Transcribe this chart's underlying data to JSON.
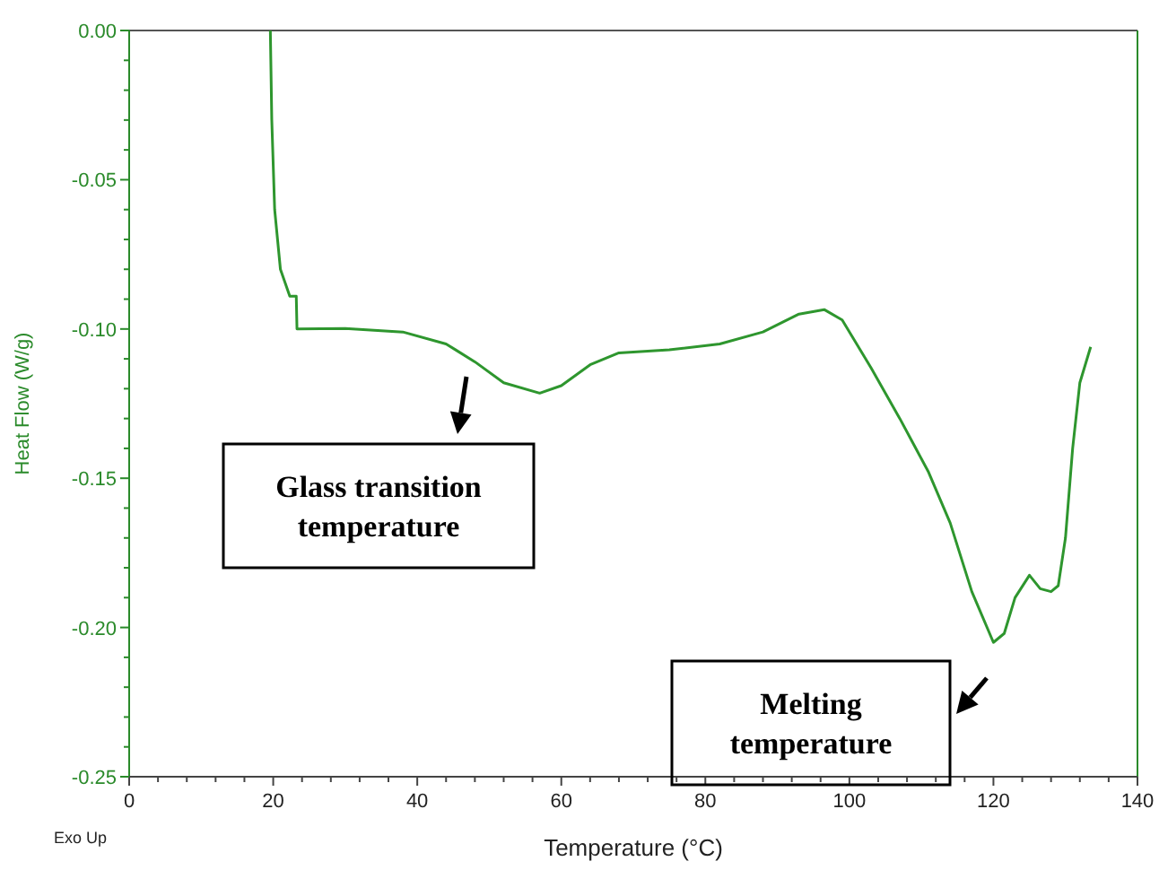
{
  "chart_data": {
    "type": "line",
    "xlabel": "Temperature (°C)",
    "ylabel": "Heat Flow (W/g)",
    "xlim": [
      0,
      140
    ],
    "xticks": [
      0,
      20,
      40,
      60,
      80,
      100,
      120,
      140
    ],
    "ylim": [
      -0.25,
      0
    ],
    "yticks": [
      {
        "value": -0.25,
        "label": "-0.25"
      },
      {
        "value": -0.2,
        "label": "-0.20"
      },
      {
        "value": -0.15,
        "label": "-0.15"
      },
      {
        "value": -0.1,
        "label": "-0.10"
      },
      {
        "value": -0.05,
        "label": "-0.05"
      },
      {
        "value": 0,
        "label": "0.00"
      }
    ],
    "grid": false,
    "marker": "none",
    "line_style": "solid",
    "series": [
      {
        "color": "#2e962e",
        "x": [
          19.6,
          19.8,
          20.2,
          21,
          22.3,
          23.2,
          23.3,
          30,
          38,
          44,
          48,
          52,
          57,
          60,
          64,
          68,
          75,
          82,
          88,
          93,
          96.5,
          99,
          103,
          107,
          111,
          114,
          117,
          120,
          121.5,
          123,
          125,
          126.5,
          128,
          129,
          130,
          131,
          132,
          133.5
        ],
        "values": [
          0,
          -0.03,
          -0.06,
          -0.08,
          -0.089,
          -0.089,
          -0.1,
          -0.0998,
          -0.101,
          -0.105,
          -0.111,
          -0.118,
          -0.1215,
          -0.119,
          -0.112,
          -0.108,
          -0.107,
          -0.105,
          -0.101,
          -0.095,
          -0.0935,
          -0.097,
          -0.113,
          -0.13,
          -0.148,
          -0.165,
          -0.188,
          -0.205,
          -0.202,
          -0.19,
          -0.1825,
          -0.187,
          -0.188,
          -0.186,
          -0.17,
          -0.14,
          -0.118,
          -0.106
        ]
      }
    ],
    "annotations": [
      "Glass transition\ntemperature",
      "Melting\ntemperature",
      "Exo Up"
    ]
  }
}
